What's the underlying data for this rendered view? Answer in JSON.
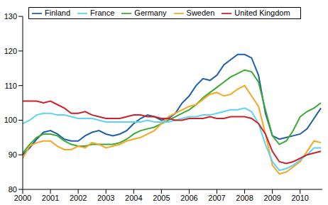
{
  "chart_data": {
    "type": "line",
    "x": [
      2000,
      2000.25,
      2000.5,
      2000.75,
      2001,
      2001.25,
      2001.5,
      2001.75,
      2002,
      2002.25,
      2002.5,
      2002.75,
      2003,
      2003.25,
      2003.5,
      2003.75,
      2004,
      2004.25,
      2004.5,
      2004.75,
      2005,
      2005.25,
      2005.5,
      2005.75,
      2006,
      2006.25,
      2006.5,
      2006.75,
      2007,
      2007.25,
      2007.5,
      2007.75,
      2008,
      2008.25,
      2008.5,
      2008.75,
      2009,
      2009.25,
      2009.5,
      2009.75,
      2010,
      2010.25,
      2010.5,
      2010.75
    ],
    "series": [
      {
        "name": "Finland",
        "color": "#1f5fa8",
        "values": [
          90,
          92,
          94.5,
          96.5,
          97,
          96,
          94.5,
          94,
          94,
          95.5,
          96.5,
          97,
          96,
          95.5,
          96,
          97,
          99,
          100.5,
          101.5,
          101,
          100,
          100.5,
          102,
          105,
          107,
          110,
          112,
          111.5,
          113,
          116,
          117.5,
          119,
          119,
          118,
          113,
          102,
          95.5,
          94.5,
          95,
          95.5,
          96,
          97.5,
          100.5,
          103.5
        ]
      },
      {
        "name": "Germany",
        "color": "#3aaa35",
        "values": [
          90.5,
          93,
          95,
          96,
          96,
          95.5,
          94,
          93,
          92.5,
          92.5,
          93,
          93,
          93,
          93,
          93.5,
          94.5,
          96,
          97,
          97.5,
          98,
          99,
          100,
          101,
          102,
          103,
          104.5,
          106.5,
          108,
          109.5,
          111,
          112.5,
          113.5,
          114.5,
          114,
          111,
          103,
          95.5,
          93,
          94,
          97,
          101,
          102.5,
          103.5,
          105
        ]
      },
      {
        "name": "Sweden",
        "color": "#f5a623",
        "values": [
          89,
          92.5,
          93.5,
          94,
          94,
          92.5,
          91.5,
          91.5,
          92.5,
          92,
          93.5,
          93,
          92,
          92.5,
          93,
          94,
          94.5,
          95,
          96,
          97,
          99,
          101,
          102,
          103,
          104,
          104.5,
          106,
          107.5,
          108,
          107,
          107.5,
          109,
          110,
          107,
          104,
          96,
          87,
          84.5,
          85,
          86.5,
          88,
          91,
          94,
          93.5
        ]
      },
      {
        "name": "France",
        "color": "#5fd3f3",
        "values": [
          99,
          100,
          101.5,
          102,
          102,
          101.5,
          101.5,
          101,
          100.5,
          100.5,
          100.5,
          100,
          99.5,
          99.5,
          99.5,
          99.5,
          99.5,
          99.5,
          100,
          99.5,
          99.5,
          99.5,
          100,
          100.5,
          101,
          101,
          101.5,
          101.5,
          102,
          102.5,
          103,
          103,
          103.5,
          102.5,
          99,
          93,
          88,
          85.5,
          86,
          87,
          88.5,
          90,
          92,
          92
        ]
      },
      {
        "name": "United Kingdom",
        "color": "#cc2229",
        "values": [
          105.5,
          105.5,
          105.5,
          105,
          105.5,
          104.5,
          103.5,
          102,
          102,
          102.5,
          101.5,
          101,
          100.5,
          100.5,
          100.5,
          101,
          101.5,
          101.5,
          101,
          101,
          100.5,
          100.5,
          100,
          100,
          100.5,
          100.5,
          100.5,
          101,
          100.5,
          100.5,
          101,
          101,
          101,
          100.5,
          99,
          96,
          91,
          88,
          87.5,
          88,
          89,
          90,
          90.5,
          91
        ]
      }
    ],
    "xlim": [
      2000,
      2010.8
    ],
    "xticks": [
      2000,
      2001,
      2002,
      2003,
      2004,
      2005,
      2006,
      2007,
      2008,
      2009,
      2010
    ],
    "ylim": [
      80,
      130
    ],
    "yticks": [
      80,
      90,
      100,
      110,
      120,
      130
    ],
    "grid": false,
    "legend": "top-left"
  }
}
